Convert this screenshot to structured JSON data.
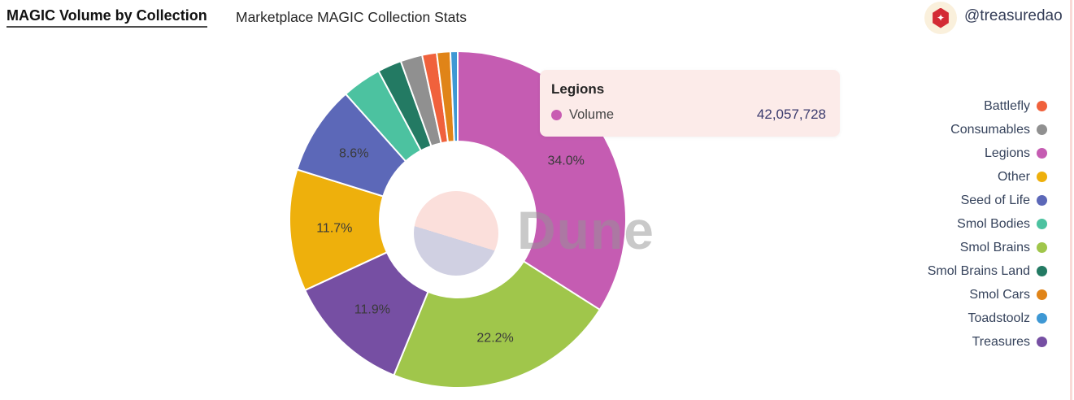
{
  "header": {
    "title": "MAGIC Volume by Collection",
    "subtitle": "Marketplace MAGIC Collection Stats",
    "creator_handle": "@treasuredao",
    "creator_icon": "treasure-logo-icon",
    "creator_icon_glyph": "✦"
  },
  "tooltip": {
    "title": "Legions",
    "metric_label": "Volume",
    "value": "42,057,728",
    "dot_color": "#c85cb2",
    "bg_color": "#fcebe9"
  },
  "watermark": {
    "text": "Dune"
  },
  "chart_data": {
    "type": "pie",
    "donut": true,
    "title": "MAGIC Volume by Collection",
    "subtitle": "Marketplace MAGIC Collection Stats",
    "metric": "Volume",
    "legend_position": "right",
    "hovered_slice": "Legions",
    "hovered_value": 42057728,
    "slices": [
      {
        "name": "Legions",
        "pct": 34.0,
        "label": "34.0%",
        "color": "#c55cb2"
      },
      {
        "name": "Smol Brains",
        "pct": 22.2,
        "label": "22.2%",
        "color": "#a0c64b"
      },
      {
        "name": "Treasures",
        "pct": 11.9,
        "label": "11.9%",
        "color": "#764fa3"
      },
      {
        "name": "Other",
        "pct": 11.7,
        "label": "11.7%",
        "color": "#eeb00c"
      },
      {
        "name": "Seed of Life",
        "pct": 8.6,
        "label": "8.6%",
        "color": "#5c68b8"
      },
      {
        "name": "Smol Bodies",
        "pct": 3.8,
        "label": null,
        "color": "#4cc2a0"
      },
      {
        "name": "Smol Brains Land",
        "pct": 2.3,
        "label": null,
        "color": "#237a63"
      },
      {
        "name": "Consumables",
        "pct": 2.1,
        "label": null,
        "color": "#909090"
      },
      {
        "name": "Battlefly",
        "pct": 1.4,
        "label": null,
        "color": "#f0613c"
      },
      {
        "name": "Smol Cars",
        "pct": 1.3,
        "label": null,
        "color": "#e08418"
      },
      {
        "name": "Toadstoolz",
        "pct": 0.7,
        "label": null,
        "color": "#3e98d4"
      }
    ],
    "legend": [
      {
        "name": "Battlefly",
        "color": "#f0613c"
      },
      {
        "name": "Consumables",
        "color": "#909090"
      },
      {
        "name": "Legions",
        "color": "#c55cb2"
      },
      {
        "name": "Other",
        "color": "#eeb00c"
      },
      {
        "name": "Seed of Life",
        "color": "#5c68b8"
      },
      {
        "name": "Smol Bodies",
        "color": "#4cc2a0"
      },
      {
        "name": "Smol Brains",
        "color": "#a0c64b"
      },
      {
        "name": "Smol Brains Land",
        "color": "#237a63"
      },
      {
        "name": "Smol Cars",
        "color": "#e08418"
      },
      {
        "name": "Toadstoolz",
        "color": "#3e98d4"
      },
      {
        "name": "Treasures",
        "color": "#764fa3"
      }
    ]
  }
}
